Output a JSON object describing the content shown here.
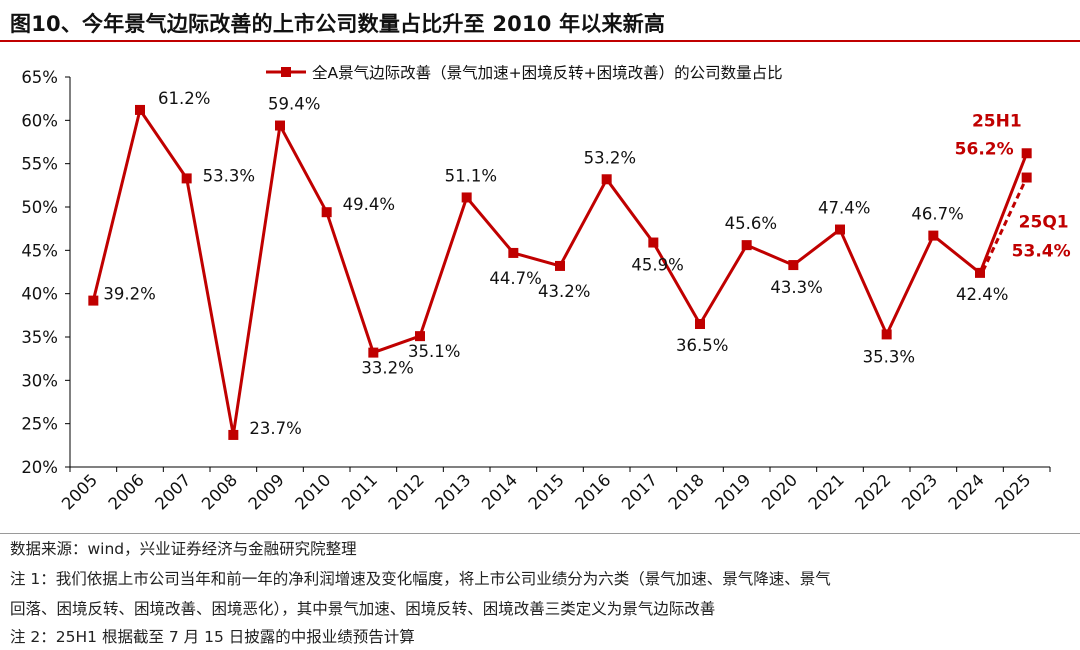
{
  "title": "图10、今年景气边际改善的上市公司数量占比升至 2010 年以来新高",
  "colors": {
    "line": "#c00000",
    "axis": "#000000"
  },
  "chart_data": {
    "type": "line",
    "title": "",
    "xlabel": "",
    "ylabel": "",
    "ylim": [
      20,
      65
    ],
    "yticks": [
      20,
      25,
      30,
      35,
      40,
      45,
      50,
      55,
      60,
      65
    ],
    "ytick_labels": [
      "20%",
      "25%",
      "30%",
      "35%",
      "40%",
      "45%",
      "50%",
      "55%",
      "60%",
      "65%"
    ],
    "categories": [
      "2005",
      "2006",
      "2007",
      "2008",
      "2009",
      "2010",
      "2011",
      "2012",
      "2013",
      "2014",
      "2015",
      "2016",
      "2017",
      "2018",
      "2019",
      "2020",
      "2021",
      "2022",
      "2023",
      "2024",
      "2025"
    ],
    "legend": {
      "position": "top",
      "label": "全A景气边际改善（景气加速+困境反转+困境改善）的公司数量占比"
    },
    "series": [
      {
        "name": "全A景气边际改善（景气加速+困境反转+困境改善）的公司数量占比",
        "values": [
          39.2,
          61.2,
          53.3,
          23.7,
          59.4,
          49.4,
          33.2,
          35.1,
          51.1,
          44.7,
          43.2,
          53.2,
          45.9,
          36.5,
          45.6,
          43.3,
          47.4,
          35.3,
          46.7,
          42.4,
          56.2
        ],
        "point_labels": [
          "39.2%",
          "61.2%",
          "53.3%",
          "23.7%",
          "59.4%",
          "49.4%",
          "33.2%",
          "35.1%",
          "51.1%",
          "44.7%",
          "43.2%",
          "53.2%",
          "45.9%",
          "36.5%",
          "45.6%",
          "43.3%",
          "47.4%",
          "35.3%",
          "46.7%",
          "42.4%",
          ""
        ]
      }
    ],
    "annotations": [
      {
        "category": "2025",
        "name": "25H1",
        "value": 56.2,
        "label": "56.2%",
        "style": "solid"
      },
      {
        "category": "2025",
        "name": "25Q1",
        "value": 53.4,
        "label": "53.4%",
        "style": "dashed"
      }
    ]
  },
  "notes": [
    "数据来源：wind，兴业证券经济与金融研究院整理",
    "注 1：我们依据上市公司当年和前一年的净利润增速及变化幅度，将上市公司业绩分为六类（景气加速、景气降速、景气",
    "回落、困境反转、困境改善、困境恶化），其中景气加速、困境反转、困境改善三类定义为景气边际改善",
    "注 2：25H1 根据截至 7 月 15 日披露的中报业绩预告计算"
  ]
}
